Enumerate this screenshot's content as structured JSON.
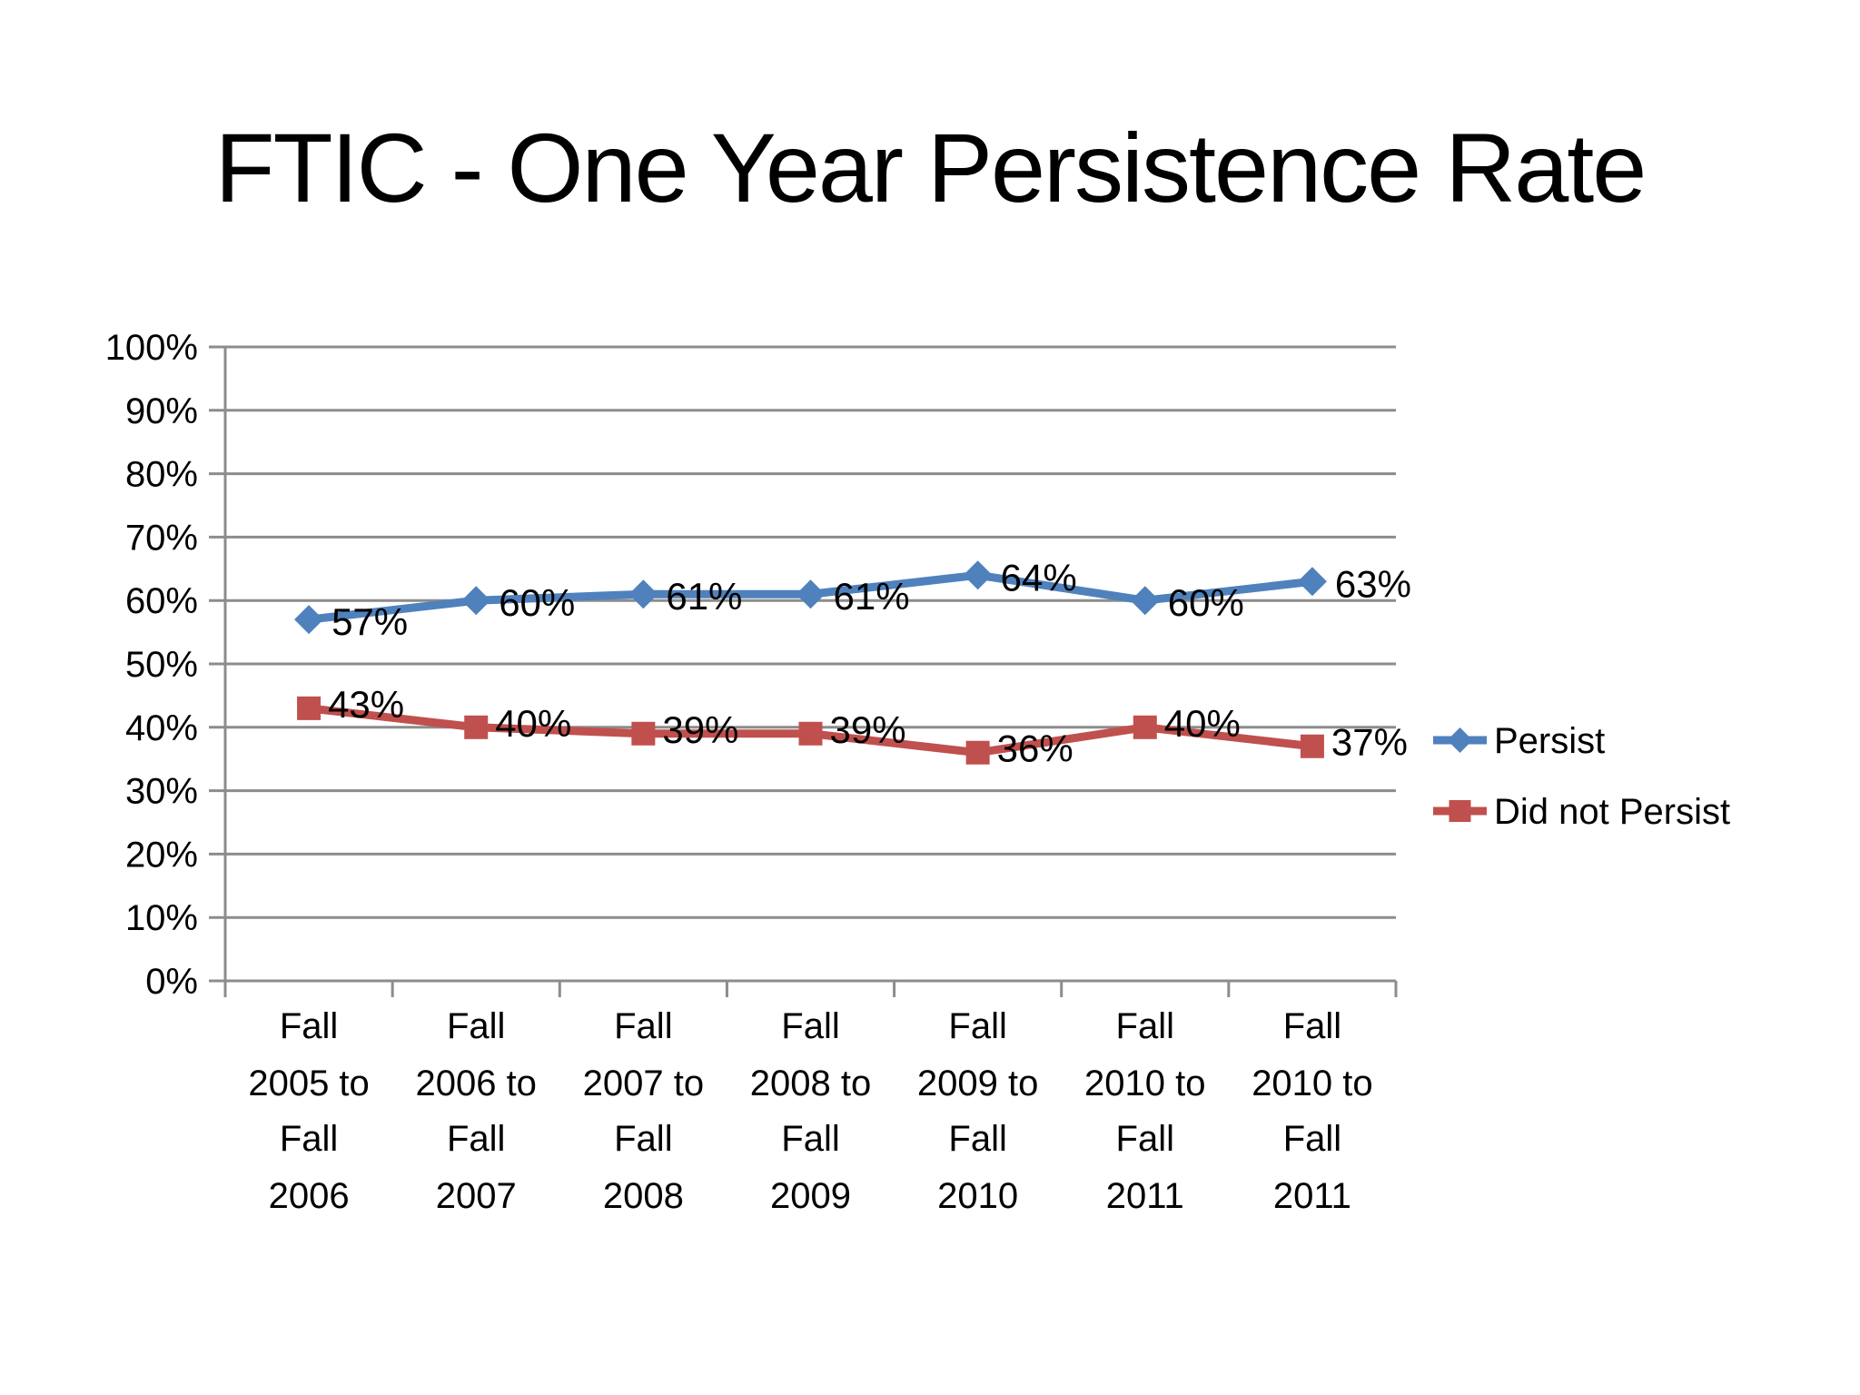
{
  "title": "FTIC - One Year Persistence Rate",
  "chart_data": {
    "type": "line",
    "title": "FTIC - One Year Persistence Rate",
    "categories": [
      "Fall 2005 to Fall 2006",
      "Fall 2006 to Fall 2007",
      "Fall 2007 to Fall 2008",
      "Fall 2008 to Fall 2009",
      "Fall 2009 to Fall 2010",
      "Fall 2010 to Fall 2011",
      "Fall 2010 to Fall 2011"
    ],
    "series": [
      {
        "name": "Persist",
        "color": "#4F81BD",
        "marker": "diamond",
        "values": [
          57,
          60,
          61,
          61,
          64,
          60,
          63
        ],
        "data_labels": [
          "57%",
          "60%",
          "61%",
          "61%",
          "64%",
          "60%",
          "63%"
        ]
      },
      {
        "name": "Did not Persist",
        "color": "#C0504D",
        "marker": "square",
        "values": [
          43,
          40,
          39,
          39,
          36,
          40,
          37
        ],
        "data_labels": [
          "43%",
          "40%",
          "39%",
          "39%",
          "36%",
          "40%",
          "37%"
        ]
      }
    ],
    "y_axis": {
      "min": 0,
      "max": 100,
      "step": 10,
      "tick_labels": [
        "0%",
        "10%",
        "20%",
        "30%",
        "40%",
        "50%",
        "60%",
        "70%",
        "80%",
        "90%",
        "100%"
      ]
    },
    "legend": {
      "position": "right",
      "entries": [
        "Persist",
        "Did not Persist"
      ]
    },
    "grid": true,
    "colors": {
      "gridline": "#8C8C8C",
      "axis": "#808080",
      "text": "#000000",
      "background": "#FFFFFF"
    }
  }
}
